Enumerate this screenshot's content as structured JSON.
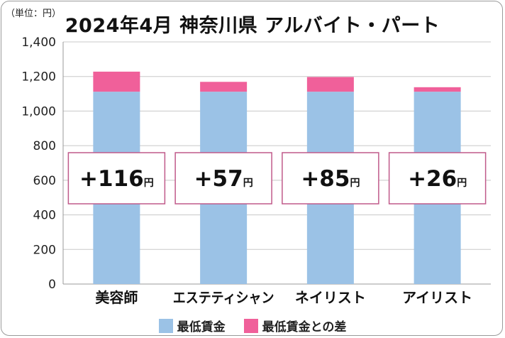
{
  "unit_label": "（単位：円）",
  "chart_data": {
    "type": "bar",
    "stacked": true,
    "title": "2024年4月 神奈川県 アルバイト・パート",
    "categories": [
      "美容師",
      "エステティシャン",
      "ネイリスト",
      "アイリスト"
    ],
    "series": [
      {
        "name": "最低賃金",
        "color": "#9bc2e6",
        "values": [
          1112,
          1112,
          1112,
          1112
        ]
      },
      {
        "name": "最低賃金との差",
        "color": "#f0609a",
        "values": [
          116,
          57,
          85,
          26
        ]
      }
    ],
    "difference_labels": [
      "+116",
      "+57",
      "+85",
      "+26"
    ],
    "difference_unit": "円",
    "ylim": [
      0,
      1400
    ],
    "yticks": [
      0,
      200,
      400,
      600,
      800,
      1000,
      1200,
      1400
    ],
    "ytick_labels": [
      "0",
      "200",
      "400",
      "600",
      "800",
      "1,000",
      "1,200",
      "1,400"
    ],
    "grid": true,
    "legend_position": "bottom"
  }
}
